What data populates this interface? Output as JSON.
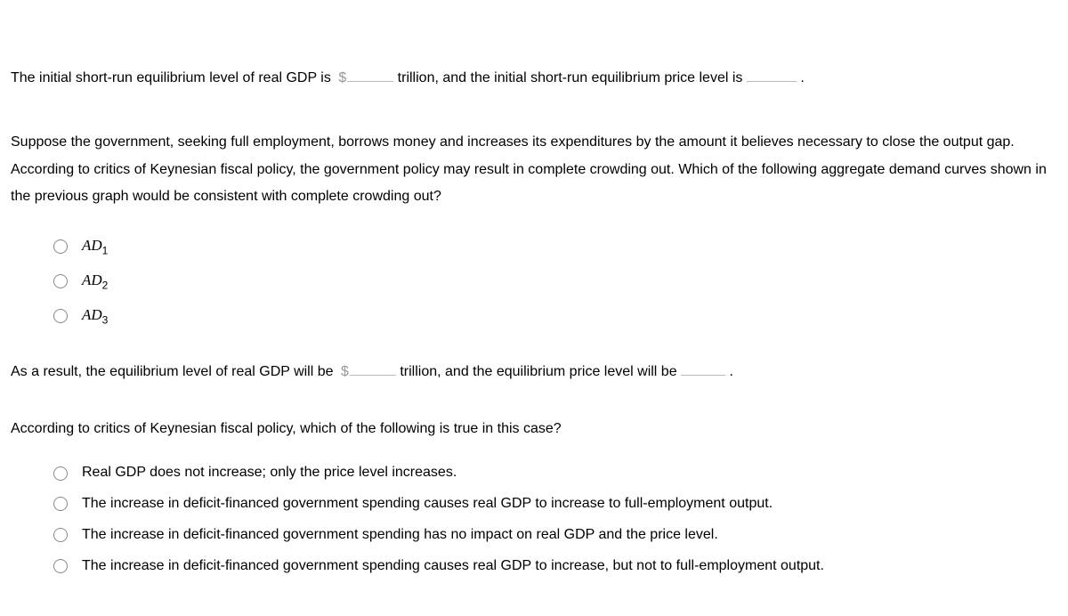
{
  "q1": {
    "part1": "The initial short-run equilibrium level of real GDP is",
    "part2": "trillion, and the initial short-run equilibrium price level is",
    "part3": "."
  },
  "q2": {
    "text": "Suppose the government, seeking full employment, borrows money and increases its expenditures by the amount it believes necessary to close the output gap. According to critics of Keynesian fiscal policy, the government policy may result in complete crowding out. Which of the following aggregate demand curves shown in the previous graph would be consistent with complete crowding out?",
    "options": [
      {
        "label": "AD",
        "sub": "1"
      },
      {
        "label": "AD",
        "sub": "2"
      },
      {
        "label": "AD",
        "sub": "3"
      }
    ]
  },
  "q3": {
    "part1": "As a result, the equilibrium level of real GDP will be",
    "part2": "trillion, and the equilibrium price level will be",
    "part3": "."
  },
  "q4": {
    "text": "According to critics of Keynesian fiscal policy, which of the following is true in this case?",
    "options": [
      "Real GDP does not increase; only the price level increases.",
      "The increase in deficit-financed government spending causes real GDP to increase to full-employment output.",
      "The increase in deficit-financed government spending has no impact on real GDP and the price level.",
      "The increase in deficit-financed government spending causes real GDP to increase, but not to full-employment output."
    ]
  }
}
